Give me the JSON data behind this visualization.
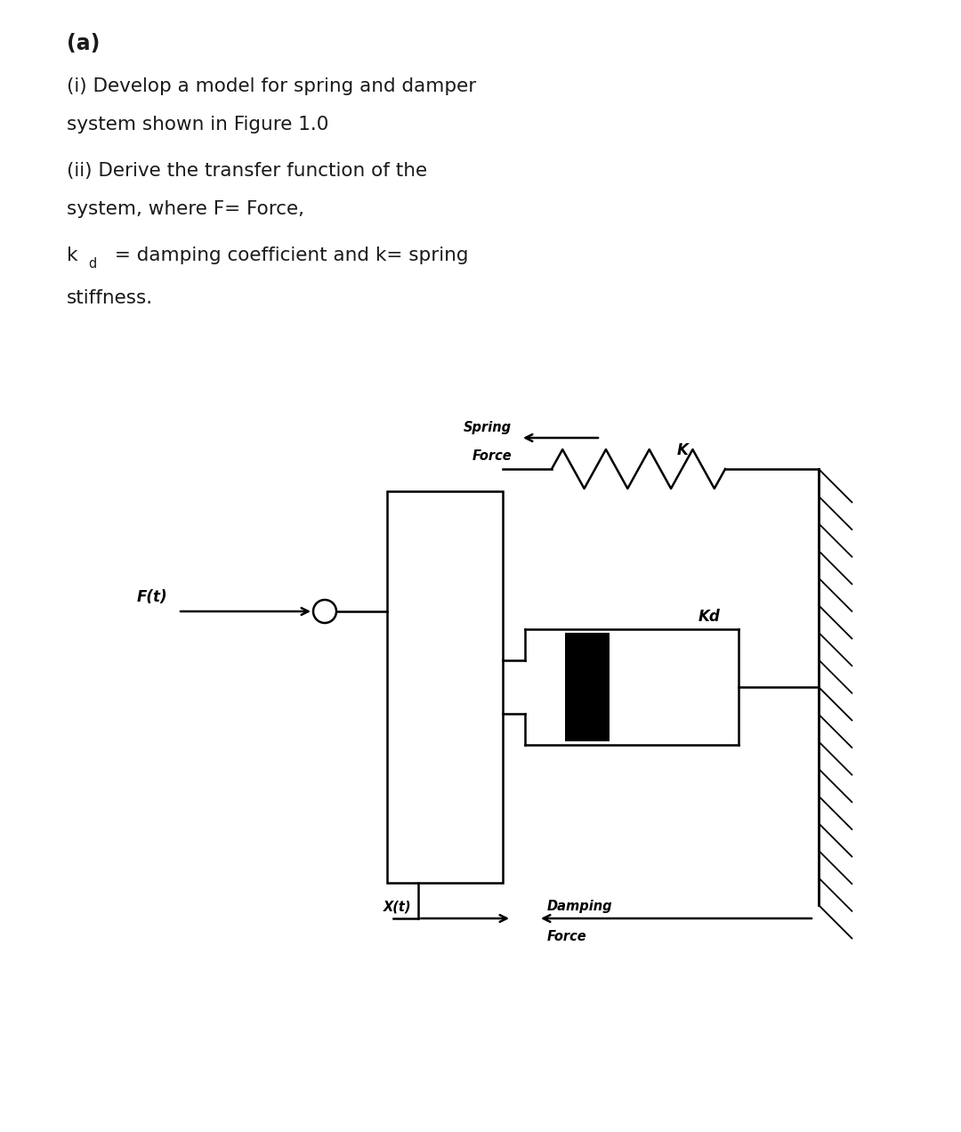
{
  "bg_color": "#ffffff",
  "text_color": "#1a1a1a",
  "title_a": "(a)",
  "line1": "(i) Develop a model for spring and damper",
  "line2": "system shown in Figure 1.0",
  "line3": "(ii) Derive the transfer function of the",
  "line4": "system, where F= Force,",
  "line5_main": "= damping coefficient and k= spring",
  "line6": "stiffness.",
  "label_ft": "F(t)",
  "label_spring_force_1": "Spring",
  "label_spring_force_2": "Force",
  "label_k": "K",
  "label_kd": "Kd",
  "label_xt": "X(t)",
  "label_damping_force_1": "Damping",
  "label_damping_force_2": "Force",
  "fig_width": 10.8,
  "fig_height": 12.72,
  "lw": 1.8
}
